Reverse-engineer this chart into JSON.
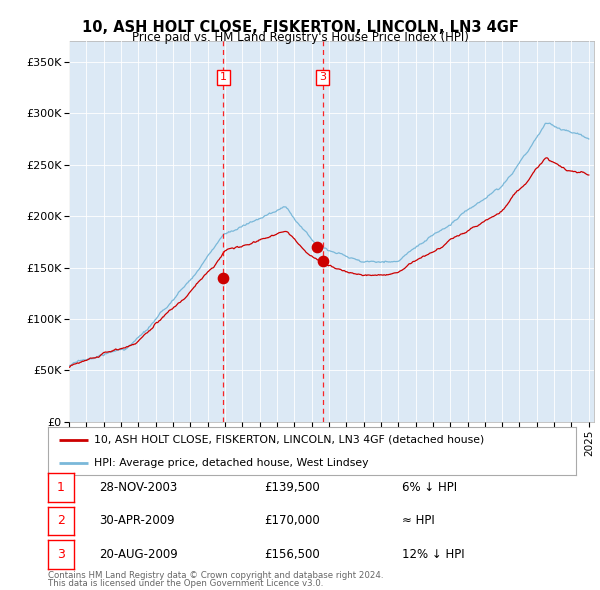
{
  "title": "10, ASH HOLT CLOSE, FISKERTON, LINCOLN, LN3 4GF",
  "subtitle": "Price paid vs. HM Land Registry's House Price Index (HPI)",
  "plot_bg_color": "#dce9f5",
  "ylim": [
    0,
    370000
  ],
  "yticks": [
    0,
    50000,
    100000,
    150000,
    200000,
    250000,
    300000,
    350000
  ],
  "ytick_labels": [
    "£0",
    "£50K",
    "£100K",
    "£150K",
    "£200K",
    "£250K",
    "£300K",
    "£350K"
  ],
  "sale1": {
    "date_num": 2003.91,
    "price": 139500
  },
  "sale2": {
    "date_num": 2009.33,
    "price": 170000
  },
  "sale3": {
    "date_num": 2009.64,
    "price": 156500
  },
  "hpi_color": "#7ab8d9",
  "price_color": "#cc0000",
  "legend_line1": "10, ASH HOLT CLOSE, FISKERTON, LINCOLN, LN3 4GF (detached house)",
  "legend_line2": "HPI: Average price, detached house, West Lindsey",
  "table_rows": [
    {
      "num": "1",
      "date": "28-NOV-2003",
      "price": "£139,500",
      "hpi": "6% ↓ HPI"
    },
    {
      "num": "2",
      "date": "30-APR-2009",
      "price": "£170,000",
      "hpi": "≈ HPI"
    },
    {
      "num": "3",
      "date": "20-AUG-2009",
      "price": "£156,500",
      "hpi": "12% ↓ HPI"
    }
  ],
  "footnote1": "Contains HM Land Registry data © Crown copyright and database right 2024.",
  "footnote2": "This data is licensed under the Open Government Licence v3.0."
}
